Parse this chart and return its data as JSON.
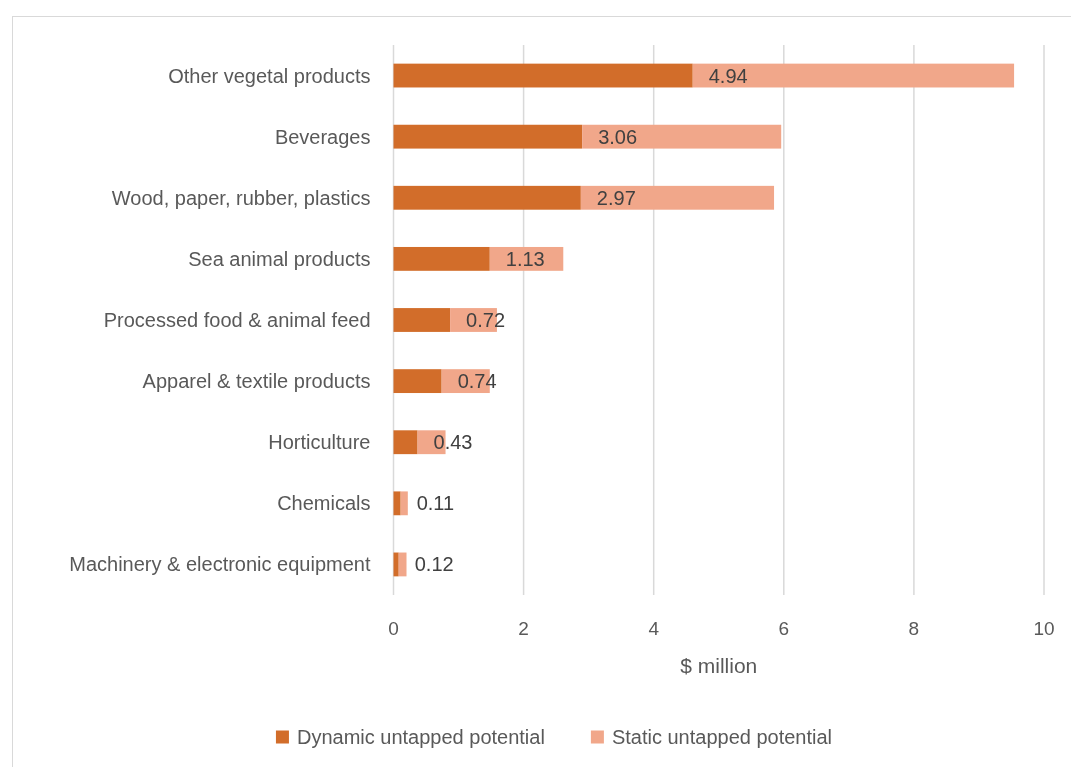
{
  "chart_data": {
    "type": "bar",
    "orientation": "horizontal",
    "stacked": true,
    "categories": [
      "Other vegetal products",
      "Beverages",
      "Wood, paper, rubber, plastics",
      "Sea animal products",
      "Processed food & animal feed",
      "Apparel & textile products",
      "Horticulture",
      "Chemicals",
      "Machinery & electronic equipment"
    ],
    "series": [
      {
        "name": "Dynamic untapped potential",
        "color": "#d26d2a",
        "values": [
          4.6,
          2.9,
          2.88,
          1.48,
          0.87,
          0.74,
          0.37,
          0.11,
          0.08
        ]
      },
      {
        "name": "Static untapped potential",
        "color": "#f1a78a",
        "values": [
          4.94,
          3.06,
          2.97,
          1.13,
          0.72,
          0.74,
          0.43,
          0.11,
          0.12
        ],
        "value_labels": [
          "4.94",
          "3.06",
          "2.97",
          "1.13",
          "0.72",
          "0.74",
          "0.43",
          "0.11",
          "0.12"
        ]
      }
    ],
    "xlabel": "$ million",
    "xlim": [
      0,
      10
    ],
    "xticks": [
      0,
      2,
      4,
      6,
      8,
      10
    ],
    "grid": "x",
    "legend": "bottom"
  }
}
